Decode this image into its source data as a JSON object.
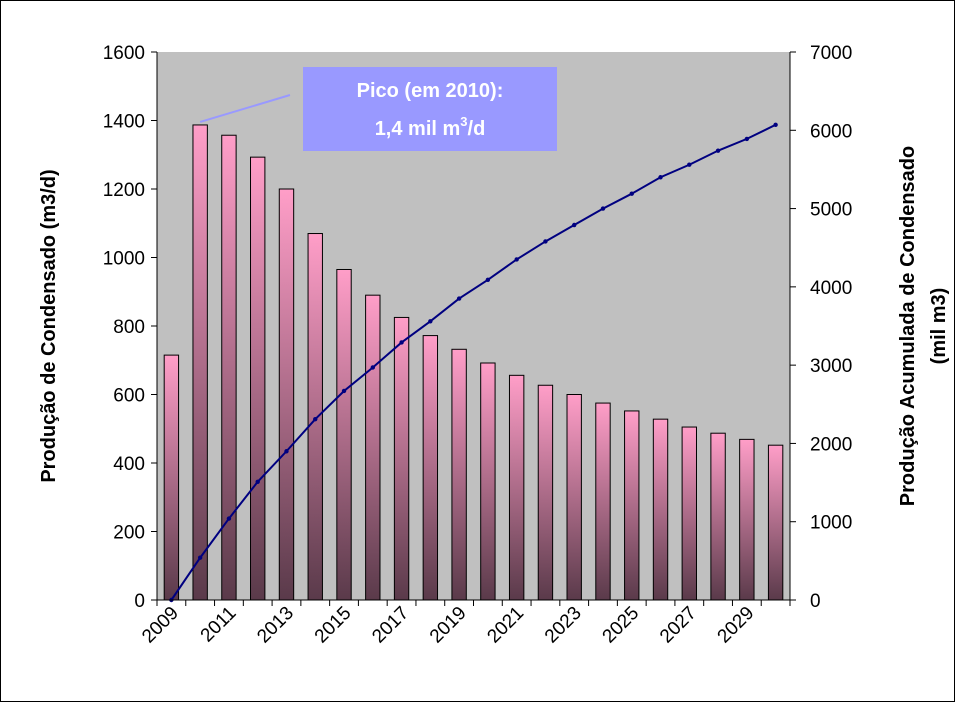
{
  "chart_data": {
    "type": "bar",
    "ylabel": "Produção de Condensado (m3/d)",
    "y2label_line1": "Produção Acumulada de Condensado",
    "y2label_line2": "(mil m3)",
    "ylim": [
      0,
      1600
    ],
    "y2lim": [
      0,
      7000
    ],
    "y_ticks": [
      0,
      200,
      400,
      600,
      800,
      1000,
      1200,
      1400,
      1600
    ],
    "y2_ticks": [
      0,
      1000,
      2000,
      3000,
      4000,
      5000,
      6000,
      7000
    ],
    "x_tick_labels": [
      "2009",
      "2011",
      "2013",
      "2015",
      "2017",
      "2019",
      "2021",
      "2023",
      "2025",
      "2027",
      "2029"
    ],
    "categories": [
      "2009",
      "2010",
      "2011",
      "2012",
      "2013",
      "2014",
      "2015",
      "2016",
      "2017",
      "2018",
      "2019",
      "2020",
      "2021",
      "2022",
      "2023",
      "2024",
      "2025",
      "2026",
      "2027",
      "2028",
      "2029",
      "2030"
    ],
    "series": [
      {
        "kind": "bar",
        "axis": "left",
        "values": [
          715,
          1387,
          1357,
          1293,
          1200,
          1070,
          965,
          890,
          825,
          772,
          732,
          692,
          656,
          627,
          600,
          575,
          552,
          528,
          505,
          487,
          469,
          452
        ]
      },
      {
        "kind": "line",
        "axis": "right",
        "values": [
          0,
          540,
          1040,
          1510,
          1900,
          2310,
          2670,
          2970,
          3290,
          3560,
          3850,
          4090,
          4350,
          4580,
          4790,
          5000,
          5190,
          5400,
          5560,
          5740,
          5890,
          6070
        ]
      }
    ],
    "annotation": {
      "line1": "Pico (em 2010):",
      "line2_prefix": "1,4 mil  m",
      "line2_sup": "3",
      "line2_suffix": "/d"
    },
    "colors": {
      "plot_background": "#c0c0c0",
      "bar_top": "#ff9ec8",
      "bar_bottom": "#5a3a4a",
      "line": "#000080",
      "callout_fill": "#9999ff"
    },
    "grid": false,
    "legend": "none"
  }
}
